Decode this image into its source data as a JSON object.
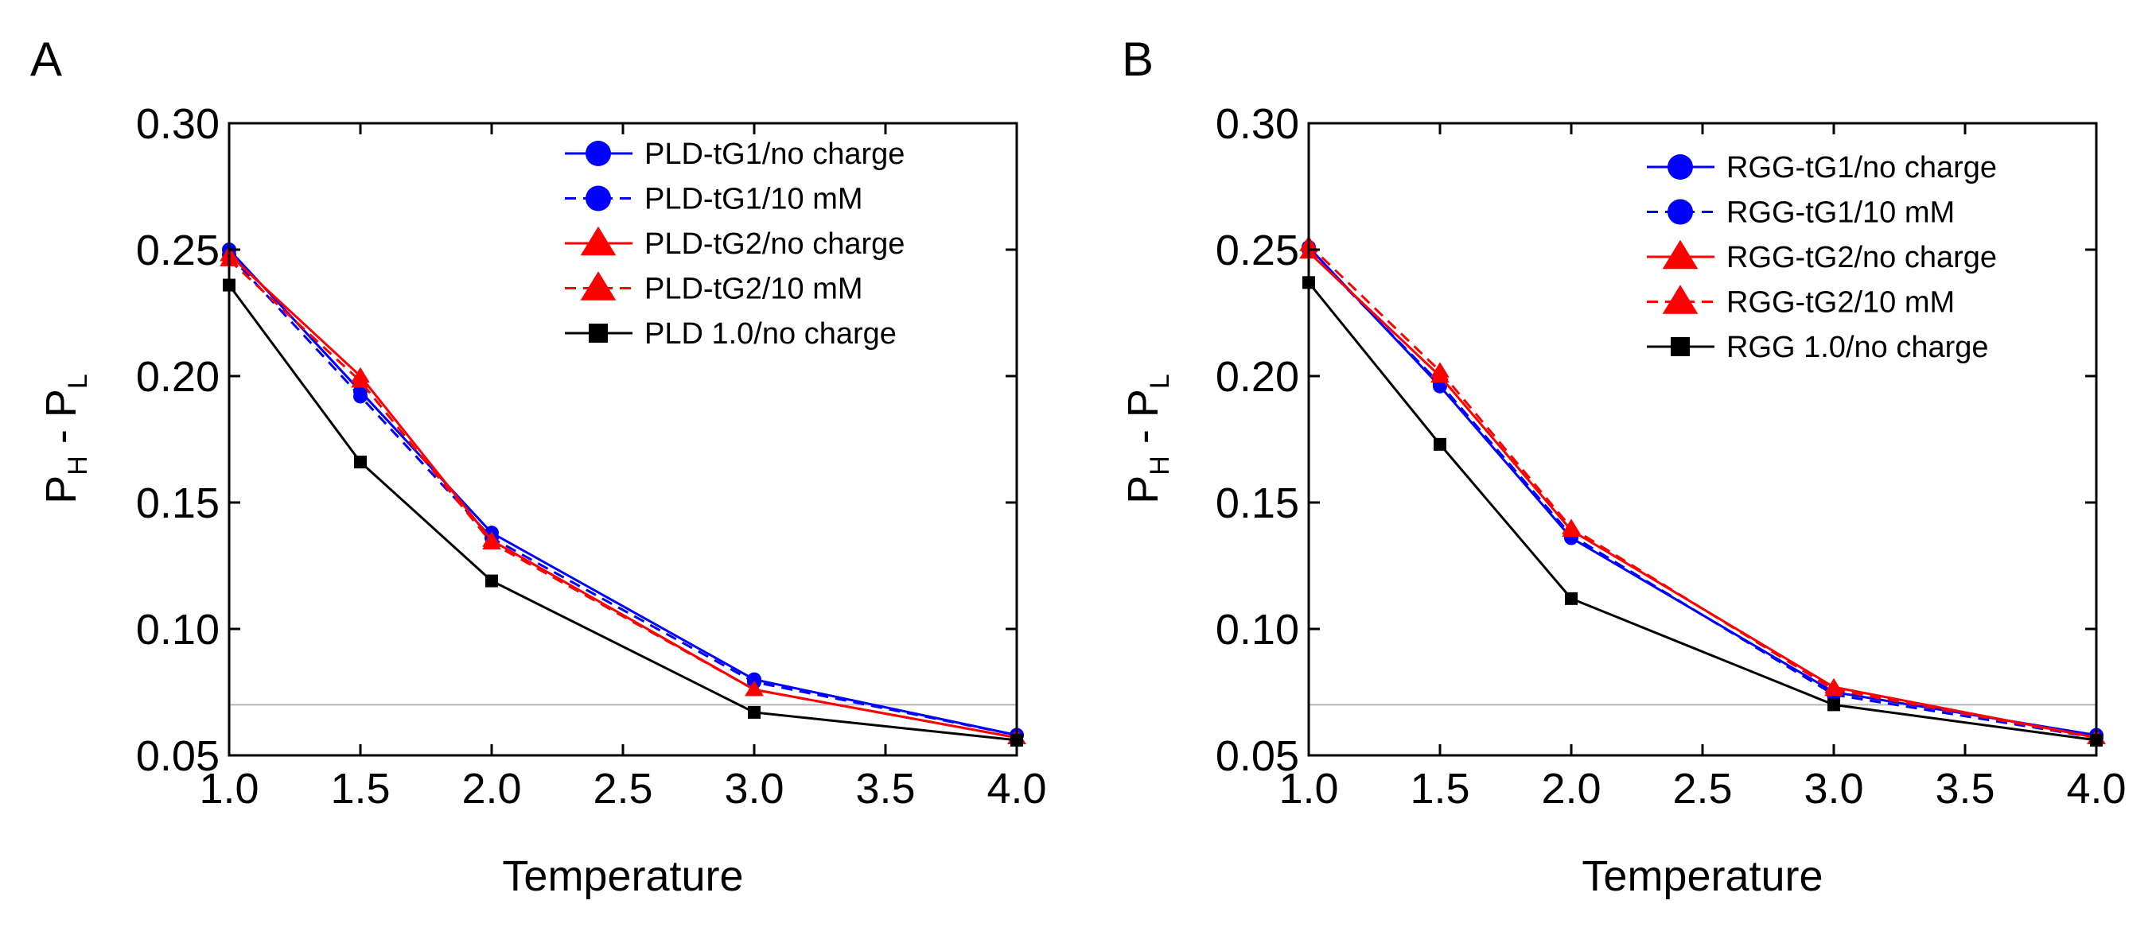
{
  "chart_data": [
    {
      "panel": "A",
      "type": "line",
      "xlabel": "Temperature",
      "ylabel_main": "P",
      "ylabel_sub_h": "H",
      "ylabel_mid": " - P",
      "ylabel_sub_l": "L",
      "xlim": [
        1.0,
        4.0
      ],
      "ylim": [
        0.05,
        0.3
      ],
      "xticks": [
        "1.0",
        "1.5",
        "2.0",
        "2.5",
        "3.0",
        "3.5",
        "4.0"
      ],
      "yticks": [
        "0.05",
        "0.10",
        "0.15",
        "0.20",
        "0.25",
        "0.30"
      ],
      "reference_line_y": 0.07,
      "legend_position": "top-right",
      "x": [
        1.0,
        1.5,
        2.0,
        3.0,
        4.0
      ],
      "series": [
        {
          "name": "PLD-tG1/no charge",
          "color": "#0000ff",
          "dash": false,
          "marker": "circle",
          "values": [
            0.25,
            0.194,
            0.138,
            0.08,
            0.058
          ]
        },
        {
          "name": "PLD-tG1/10 mM",
          "color": "#0000ff",
          "dash": true,
          "marker": "circle",
          "values": [
            0.248,
            0.192,
            0.136,
            0.079,
            0.058
          ]
        },
        {
          "name": "PLD-tG2/no charge",
          "color": "#ff0000",
          "dash": false,
          "marker": "triangle",
          "values": [
            0.248,
            0.2,
            0.135,
            0.076,
            0.057
          ]
        },
        {
          "name": "PLD-tG2/10 mM",
          "color": "#ff0000",
          "dash": true,
          "marker": "triangle",
          "values": [
            0.246,
            0.198,
            0.134,
            0.076,
            0.057
          ]
        },
        {
          "name": "PLD 1.0/no charge",
          "color": "#000000",
          "dash": false,
          "marker": "square",
          "values": [
            0.236,
            0.166,
            0.119,
            0.067,
            0.056
          ]
        }
      ]
    },
    {
      "panel": "B",
      "type": "line",
      "xlabel": "Temperature",
      "ylabel_main": "P",
      "ylabel_sub_h": "H",
      "ylabel_mid": " - P",
      "ylabel_sub_l": "L",
      "xlim": [
        1.0,
        4.0
      ],
      "ylim": [
        0.05,
        0.3
      ],
      "xticks": [
        "1.0",
        "1.5",
        "2.0",
        "2.5",
        "3.0",
        "3.5",
        "4.0"
      ],
      "yticks": [
        "0.05",
        "0.10",
        "0.15",
        "0.20",
        "0.25",
        "0.30"
      ],
      "reference_line_y": 0.07,
      "legend_position": "top-right",
      "x": [
        1.0,
        1.5,
        2.0,
        3.0,
        4.0
      ],
      "series": [
        {
          "name": "RGG-tG1/no charge",
          "color": "#0000ff",
          "dash": false,
          "marker": "circle",
          "values": [
            0.251,
            0.196,
            0.136,
            0.075,
            0.058
          ]
        },
        {
          "name": "RGG-tG1/10 mM",
          "color": "#0000ff",
          "dash": true,
          "marker": "circle",
          "values": [
            0.25,
            0.197,
            0.137,
            0.074,
            0.057
          ]
        },
        {
          "name": "RGG-tG2/no charge",
          "color": "#ff0000",
          "dash": false,
          "marker": "triangle",
          "values": [
            0.249,
            0.2,
            0.139,
            0.077,
            0.057
          ]
        },
        {
          "name": "RGG-tG2/10 mM",
          "color": "#ff0000",
          "dash": true,
          "marker": "triangle",
          "values": [
            0.252,
            0.202,
            0.14,
            0.076,
            0.057
          ]
        },
        {
          "name": "RGG 1.0/no charge",
          "color": "#000000",
          "dash": false,
          "marker": "square",
          "values": [
            0.237,
            0.173,
            0.112,
            0.07,
            0.056
          ]
        }
      ]
    }
  ]
}
